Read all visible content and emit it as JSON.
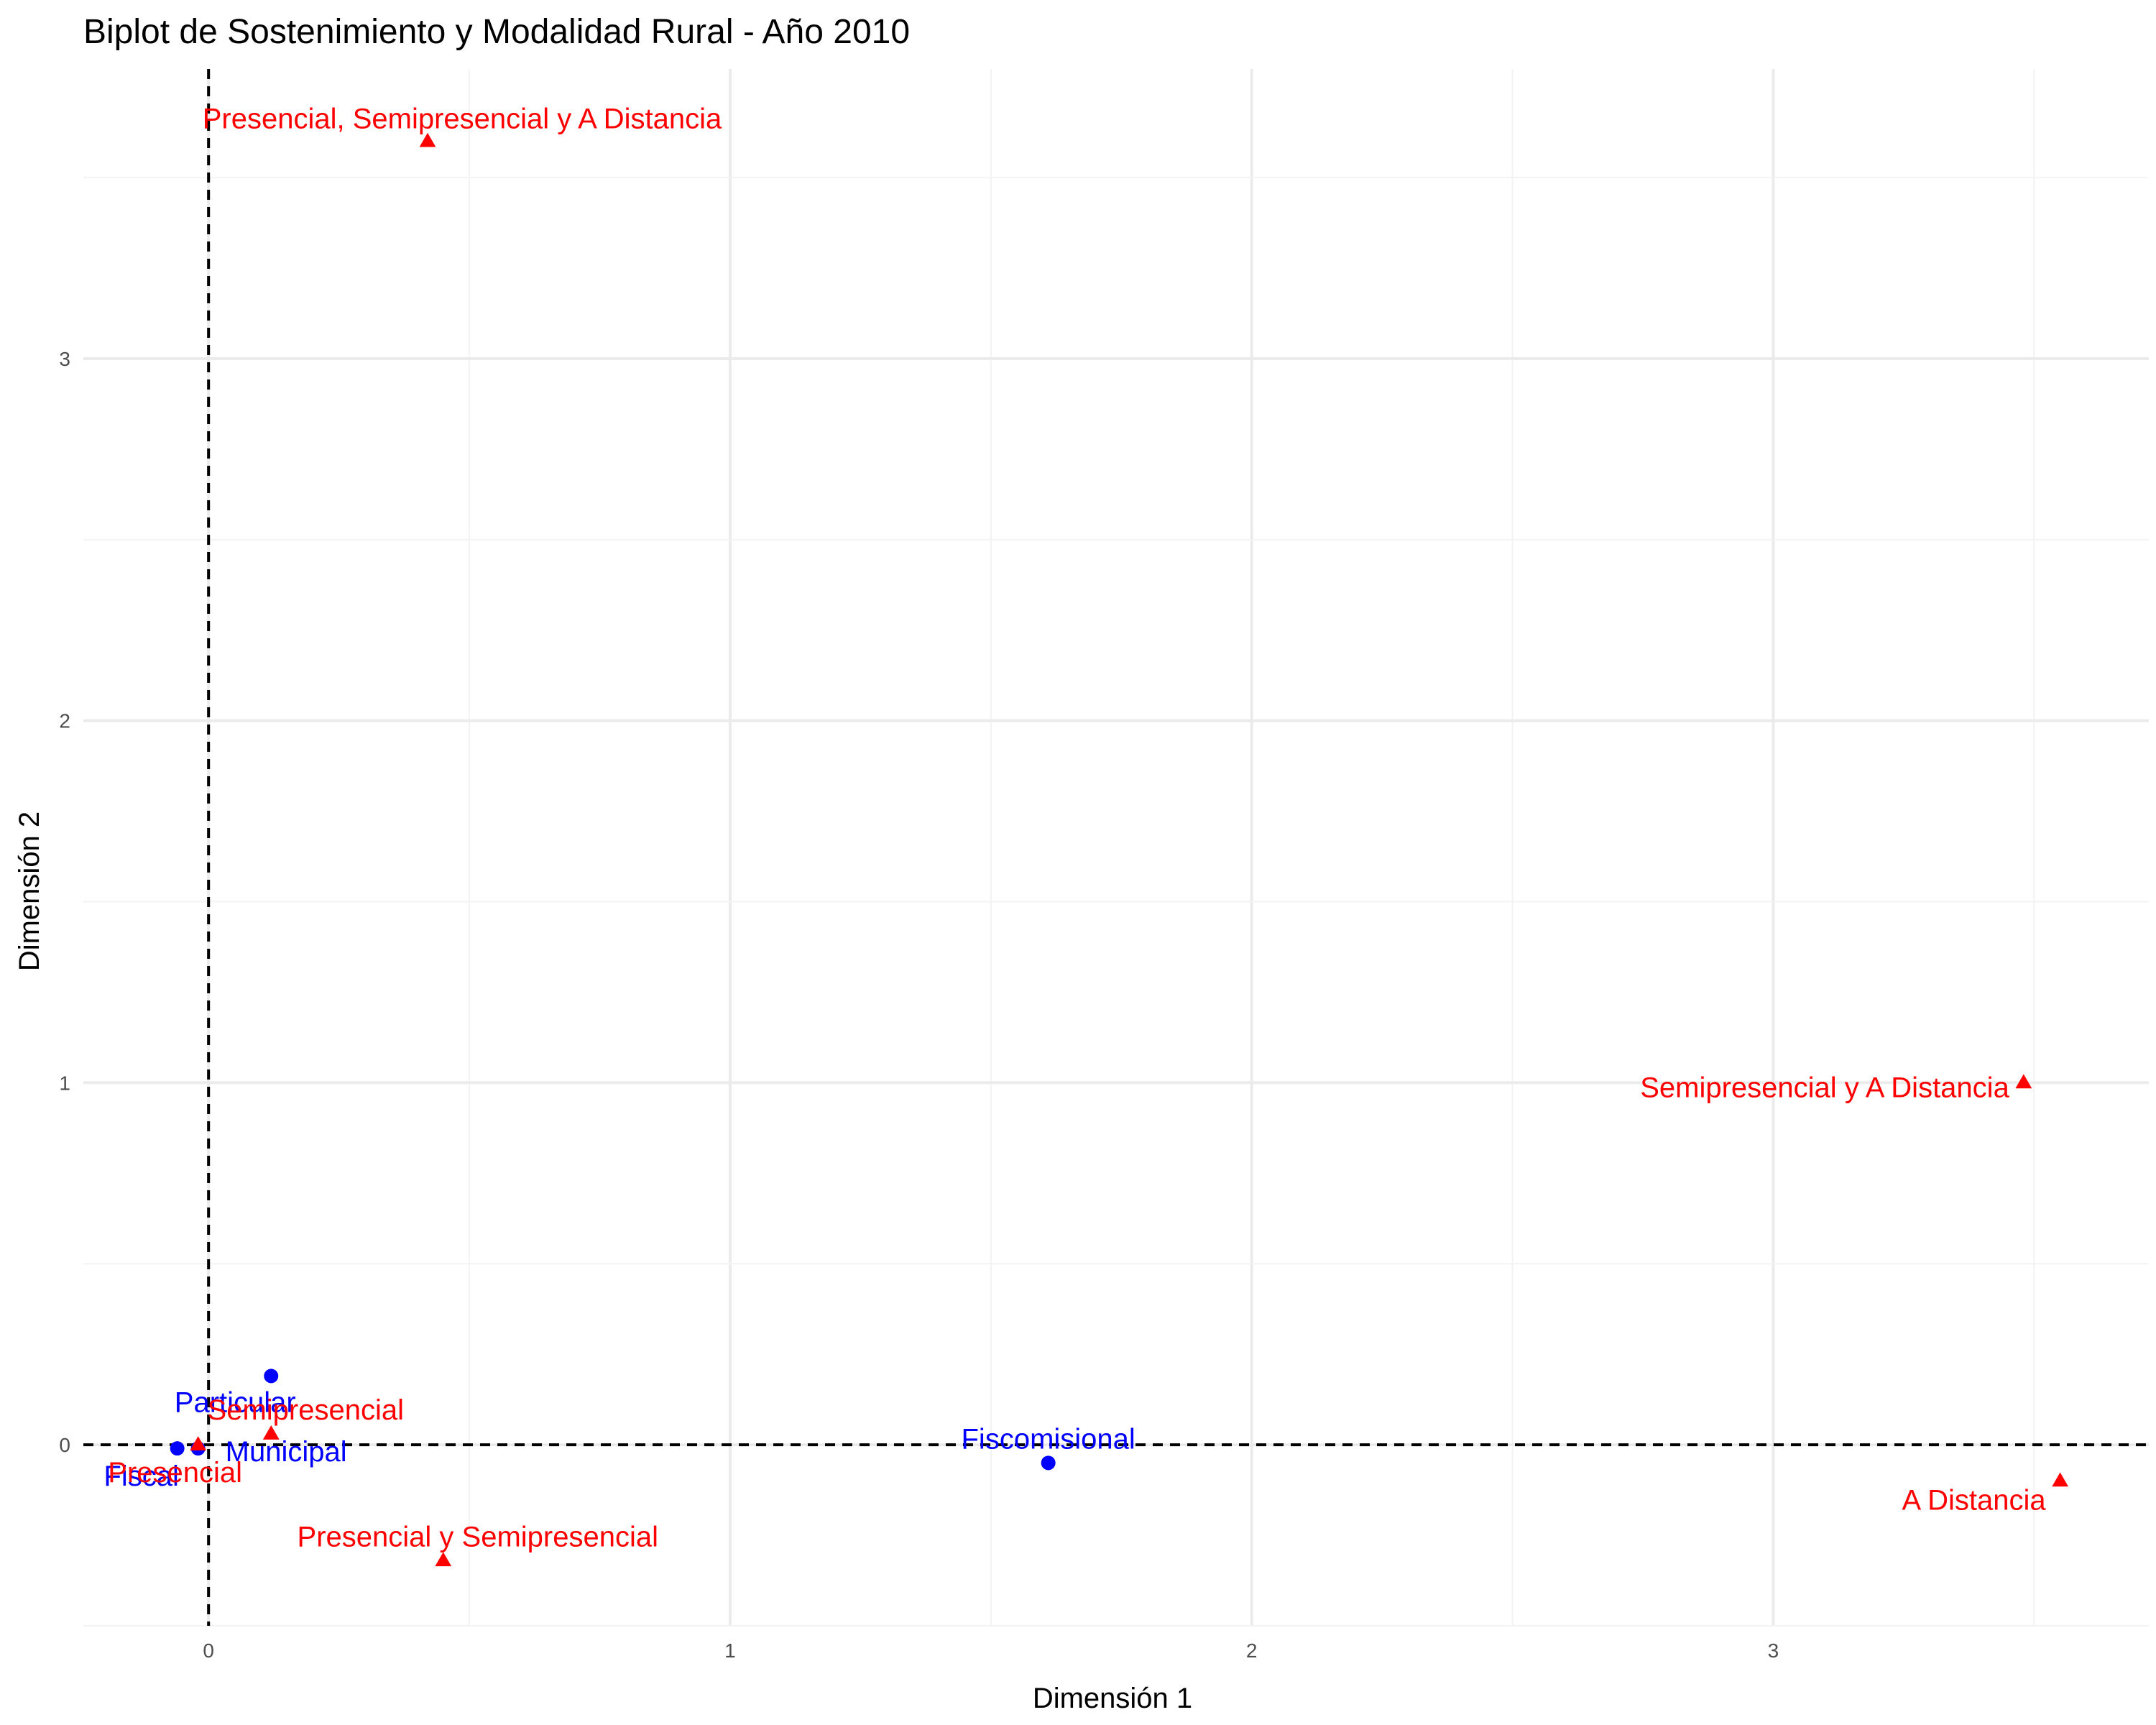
{
  "chart_data": {
    "type": "scatter",
    "title": "Biplot de Sostenimiento y Modalidad Rural - Año 2010",
    "xlabel": "Dimensión 1",
    "ylabel": "Dimensión 2",
    "xlim": [
      -0.24,
      3.72
    ],
    "ylim": [
      -0.5,
      3.8
    ],
    "xticks": [
      0,
      1,
      2,
      3
    ],
    "yticks": [
      0,
      1,
      2,
      3
    ],
    "grid": true,
    "reference_lines": {
      "x": 0,
      "y": 0,
      "style": "dashed"
    },
    "series": [
      {
        "name": "Sostenimiento",
        "color": "#0000ff",
        "marker": "circle",
        "points": [
          {
            "label": "Particular",
            "x": 0.12,
            "y": 0.19
          },
          {
            "label": "Fiscal",
            "x": -0.06,
            "y": -0.01
          },
          {
            "label": "Municipal",
            "x": -0.02,
            "y": -0.01
          },
          {
            "label": "Fiscomisional",
            "x": 1.61,
            "y": -0.05
          }
        ]
      },
      {
        "name": "Modalidad",
        "color": "#ff0000",
        "marker": "triangle",
        "points": [
          {
            "label": "Presencial, Semipresencial y A Distancia",
            "x": 0.42,
            "y": 3.6
          },
          {
            "label": "Semipresencial y A Distancia",
            "x": 3.48,
            "y": 1.0
          },
          {
            "label": "Semipresencial",
            "x": 0.12,
            "y": 0.03
          },
          {
            "label": "Presencial",
            "x": -0.02,
            "y": 0.0
          },
          {
            "label": "Presencial y Semipresencial",
            "x": 0.45,
            "y": -0.32
          },
          {
            "label": "A Distancia",
            "x": 3.55,
            "y": -0.1
          }
        ]
      }
    ]
  }
}
